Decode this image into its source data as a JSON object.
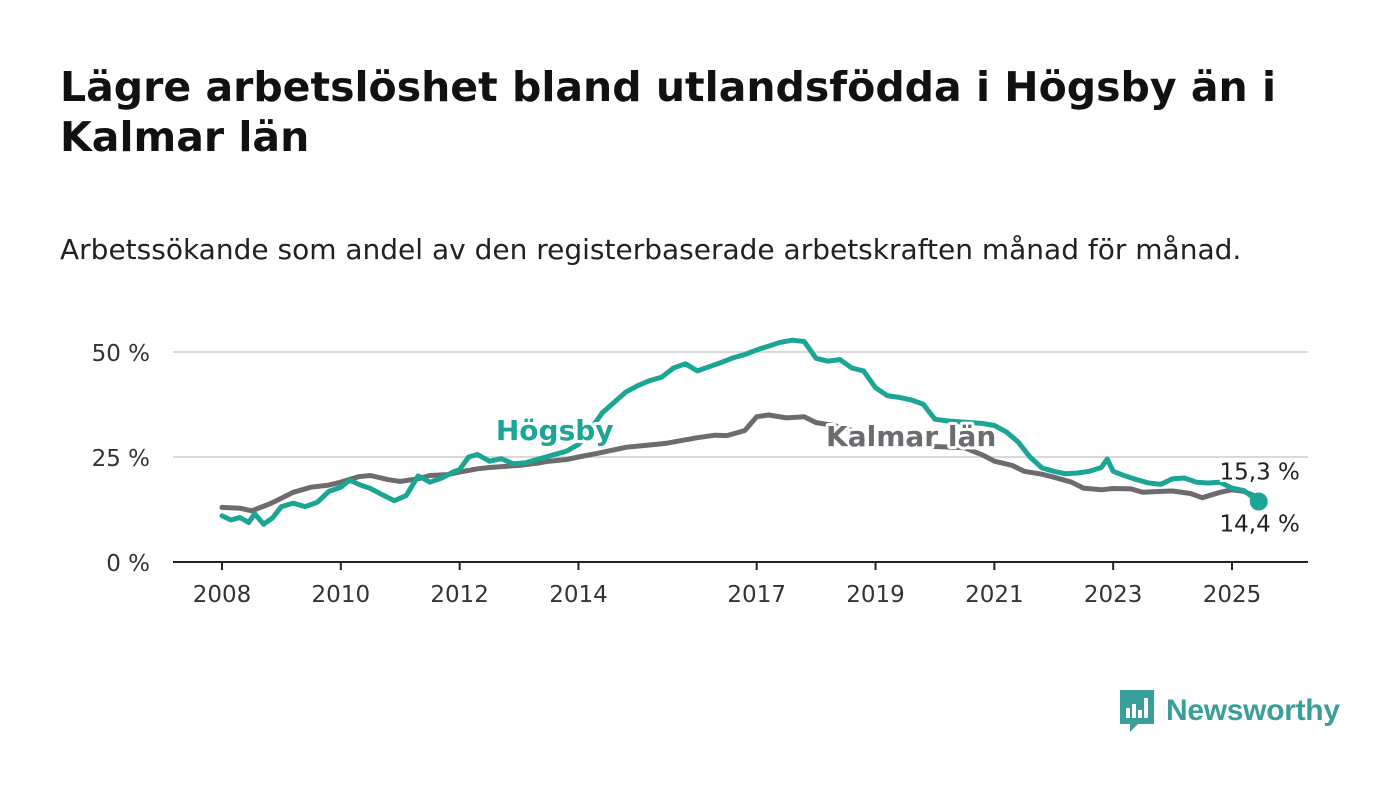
{
  "header": {
    "title": "Lägre arbetslöshet bland utlandsfödda i Högsby än i Kalmar län",
    "subtitle": "Arbetssökande som andel av den registerbaserade arbetskraften månad för månad."
  },
  "brand": {
    "name": "Newsworthy",
    "icon": "newsworthy-logo-icon",
    "color": "#3a9e9a"
  },
  "chart_data": {
    "type": "line",
    "ylim": [
      0,
      60
    ],
    "yticks": [
      {
        "value": 0,
        "label": "0 %"
      },
      {
        "value": 25,
        "label": "25 %"
      },
      {
        "value": 50,
        "label": "50 %"
      }
    ],
    "xlim": [
      2008.0,
      2025.6
    ],
    "xticks": [
      {
        "value": 2008,
        "label": "2008"
      },
      {
        "value": 2010,
        "label": "2010"
      },
      {
        "value": 2012,
        "label": "2012"
      },
      {
        "value": 2014,
        "label": "2014"
      },
      {
        "value": 2017,
        "label": "2017"
      },
      {
        "value": 2019,
        "label": "2019"
      },
      {
        "value": 2021,
        "label": "2021"
      },
      {
        "value": 2023,
        "label": "2023"
      },
      {
        "value": 2025,
        "label": "2025"
      }
    ],
    "grid": true,
    "series": [
      {
        "name": "Kalmar län",
        "color": "#6e6b70",
        "end_label": "15,3 %",
        "points": [
          [
            2008.0,
            13.0
          ],
          [
            2008.3,
            12.8
          ],
          [
            2008.5,
            12.2
          ],
          [
            2008.8,
            13.8
          ],
          [
            2009.0,
            15.2
          ],
          [
            2009.2,
            16.6
          ],
          [
            2009.5,
            17.8
          ],
          [
            2009.8,
            18.3
          ],
          [
            2010.0,
            19.0
          ],
          [
            2010.3,
            20.3
          ],
          [
            2010.5,
            20.6
          ],
          [
            2010.8,
            19.6
          ],
          [
            2011.0,
            19.2
          ],
          [
            2011.3,
            19.8
          ],
          [
            2011.5,
            20.6
          ],
          [
            2011.8,
            20.8
          ],
          [
            2012.0,
            21.4
          ],
          [
            2012.3,
            22.2
          ],
          [
            2012.5,
            22.5
          ],
          [
            2012.8,
            22.8
          ],
          [
            2013.0,
            23.0
          ],
          [
            2013.3,
            23.5
          ],
          [
            2013.5,
            24.0
          ],
          [
            2013.8,
            24.4
          ],
          [
            2014.0,
            25.0
          ],
          [
            2014.3,
            25.8
          ],
          [
            2014.5,
            26.4
          ],
          [
            2014.8,
            27.3
          ],
          [
            2015.0,
            27.6
          ],
          [
            2015.3,
            28.0
          ],
          [
            2015.5,
            28.3
          ],
          [
            2015.8,
            29.1
          ],
          [
            2016.0,
            29.6
          ],
          [
            2016.3,
            30.2
          ],
          [
            2016.5,
            30.1
          ],
          [
            2016.8,
            31.3
          ],
          [
            2017.0,
            34.6
          ],
          [
            2017.2,
            35.0
          ],
          [
            2017.5,
            34.3
          ],
          [
            2017.8,
            34.6
          ],
          [
            2018.0,
            33.2
          ],
          [
            2018.3,
            32.5
          ],
          [
            2018.5,
            31.8
          ],
          [
            2018.8,
            30.5
          ],
          [
            2019.0,
            29.5
          ],
          [
            2019.3,
            29.0
          ],
          [
            2019.5,
            28.6
          ],
          [
            2019.8,
            28.0
          ],
          [
            2020.0,
            27.5
          ],
          [
            2020.3,
            27.3
          ],
          [
            2020.5,
            27.2
          ],
          [
            2020.8,
            25.5
          ],
          [
            2021.0,
            24.0
          ],
          [
            2021.3,
            23.0
          ],
          [
            2021.5,
            21.6
          ],
          [
            2021.8,
            20.9
          ],
          [
            2022.0,
            20.2
          ],
          [
            2022.3,
            19.0
          ],
          [
            2022.5,
            17.6
          ],
          [
            2022.8,
            17.2
          ],
          [
            2023.0,
            17.5
          ],
          [
            2023.3,
            17.4
          ],
          [
            2023.5,
            16.6
          ],
          [
            2023.8,
            16.8
          ],
          [
            2024.0,
            16.9
          ],
          [
            2024.3,
            16.3
          ],
          [
            2024.5,
            15.3
          ],
          [
            2024.8,
            16.6
          ],
          [
            2025.0,
            17.2
          ],
          [
            2025.2,
            16.8
          ],
          [
            2025.45,
            15.3
          ]
        ]
      },
      {
        "name": "Högsby",
        "color": "#1aa595",
        "end_label": "14,4 %",
        "points": [
          [
            2008.0,
            11.0
          ],
          [
            2008.15,
            10.0
          ],
          [
            2008.3,
            10.6
          ],
          [
            2008.45,
            9.4
          ],
          [
            2008.55,
            11.5
          ],
          [
            2008.7,
            9.0
          ],
          [
            2008.85,
            10.5
          ],
          [
            2009.0,
            13.2
          ],
          [
            2009.2,
            14.0
          ],
          [
            2009.4,
            13.2
          ],
          [
            2009.6,
            14.2
          ],
          [
            2009.8,
            16.8
          ],
          [
            2010.0,
            17.8
          ],
          [
            2010.15,
            19.5
          ],
          [
            2010.3,
            18.5
          ],
          [
            2010.5,
            17.5
          ],
          [
            2010.7,
            16.0
          ],
          [
            2010.9,
            14.6
          ],
          [
            2011.1,
            15.8
          ],
          [
            2011.3,
            20.5
          ],
          [
            2011.5,
            19.0
          ],
          [
            2011.7,
            20.0
          ],
          [
            2011.9,
            21.5
          ],
          [
            2012.0,
            22.0
          ],
          [
            2012.15,
            25.0
          ],
          [
            2012.3,
            25.6
          ],
          [
            2012.5,
            24.0
          ],
          [
            2012.7,
            24.6
          ],
          [
            2012.9,
            23.4
          ],
          [
            2013.1,
            23.6
          ],
          [
            2013.3,
            24.4
          ],
          [
            2013.5,
            25.2
          ],
          [
            2013.8,
            26.4
          ],
          [
            2014.0,
            28.0
          ],
          [
            2014.2,
            31.5
          ],
          [
            2014.4,
            35.5
          ],
          [
            2014.6,
            38.0
          ],
          [
            2014.8,
            40.5
          ],
          [
            2015.0,
            42.0
          ],
          [
            2015.2,
            43.2
          ],
          [
            2015.4,
            44.0
          ],
          [
            2015.6,
            46.2
          ],
          [
            2015.8,
            47.2
          ],
          [
            2016.0,
            45.5
          ],
          [
            2016.2,
            46.5
          ],
          [
            2016.4,
            47.5
          ],
          [
            2016.6,
            48.6
          ],
          [
            2016.8,
            49.4
          ],
          [
            2017.0,
            50.5
          ],
          [
            2017.2,
            51.4
          ],
          [
            2017.4,
            52.3
          ],
          [
            2017.6,
            52.8
          ],
          [
            2017.8,
            52.5
          ],
          [
            2018.0,
            48.5
          ],
          [
            2018.2,
            47.8
          ],
          [
            2018.4,
            48.2
          ],
          [
            2018.6,
            46.2
          ],
          [
            2018.8,
            45.5
          ],
          [
            2019.0,
            41.5
          ],
          [
            2019.2,
            39.6
          ],
          [
            2019.4,
            39.2
          ],
          [
            2019.6,
            38.6
          ],
          [
            2019.8,
            37.6
          ],
          [
            2020.0,
            34.0
          ],
          [
            2020.2,
            33.6
          ],
          [
            2020.4,
            33.4
          ],
          [
            2020.6,
            33.2
          ],
          [
            2020.8,
            33.0
          ],
          [
            2021.0,
            32.5
          ],
          [
            2021.2,
            31.0
          ],
          [
            2021.4,
            28.6
          ],
          [
            2021.6,
            25.0
          ],
          [
            2021.8,
            22.4
          ],
          [
            2022.0,
            21.6
          ],
          [
            2022.2,
            21.0
          ],
          [
            2022.4,
            21.2
          ],
          [
            2022.6,
            21.6
          ],
          [
            2022.8,
            22.5
          ],
          [
            2022.9,
            24.5
          ],
          [
            2023.0,
            21.6
          ],
          [
            2023.2,
            20.5
          ],
          [
            2023.4,
            19.6
          ],
          [
            2023.6,
            18.8
          ],
          [
            2023.8,
            18.5
          ],
          [
            2024.0,
            19.8
          ],
          [
            2024.2,
            20.0
          ],
          [
            2024.4,
            19.0
          ],
          [
            2024.6,
            18.8
          ],
          [
            2024.8,
            19.0
          ],
          [
            2025.0,
            17.6
          ],
          [
            2025.2,
            17.0
          ],
          [
            2025.45,
            14.4
          ]
        ]
      }
    ],
    "series_labels": [
      {
        "series": "Högsby",
        "text": "Högsby",
        "x": 2013.6,
        "y": 29.0
      },
      {
        "series": "Kalmar län",
        "text": "Kalmar län",
        "x": 2019.6,
        "y": 27.6
      }
    ]
  }
}
